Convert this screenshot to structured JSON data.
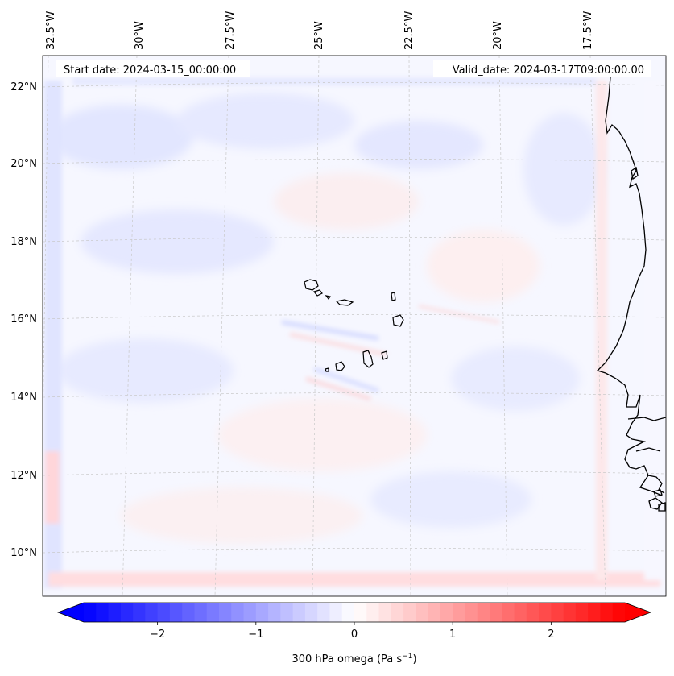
{
  "header": {
    "start_date": "Start date: 2024-03-15_00:00:00",
    "valid_date": "Valid_date: 2024-03-17T09:00:00.00"
  },
  "lon_labels": [
    "32.5°W",
    "30°W",
    "27.5°W",
    "25°W",
    "22.5°W",
    "20°W",
    "17.5°W"
  ],
  "lat_labels": [
    "22°N",
    "20°N",
    "18°N",
    "16°N",
    "14°N",
    "12°N",
    "10°N"
  ],
  "colorbar": {
    "label": "300 hPa omega (Pa s",
    "label_sup": "−1",
    "label_close": ")",
    "ticks": [
      "−2",
      "−1",
      "0",
      "1",
      "2"
    ],
    "range": [
      -2.75,
      2.75
    ],
    "cmap": "bwr",
    "low_color": "#0000ff",
    "mid_color": "#ffffff",
    "high_color": "#ff0000"
  },
  "colors": {
    "coastline": "#000000",
    "gridline": "#c8c8c8",
    "background_tint": "#f4f5ff"
  }
}
